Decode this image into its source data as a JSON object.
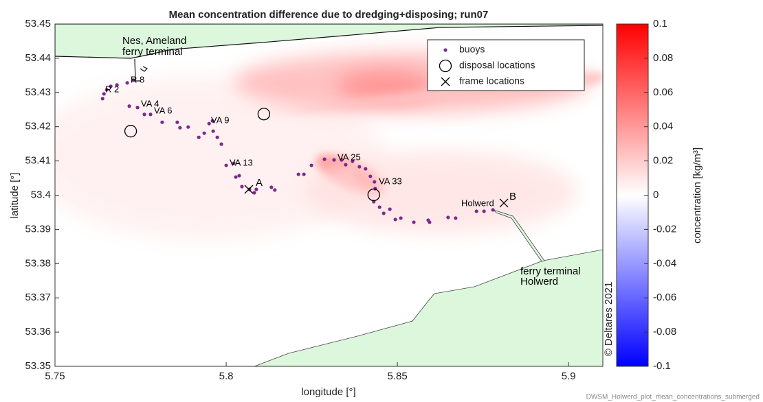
{
  "chart_data": {
    "type": "scatter",
    "title": "Mean concentration difference due to dredging+disposing; run07",
    "x_label": "longitude [°]",
    "y_label": "latitude [°]",
    "xlim": [
      5.75,
      5.91
    ],
    "ylim": [
      53.35,
      53.45
    ],
    "xticks": [
      5.75,
      5.8,
      5.85,
      5.9
    ],
    "yticks": [
      53.35,
      53.36,
      53.37,
      53.38,
      53.39,
      53.4,
      53.41,
      53.42,
      53.43,
      53.44,
      53.45
    ],
    "legend": "upper right",
    "series": [
      {
        "name": "buoys",
        "marker": "dot",
        "color": "#7b2a8c",
        "x": [
          5.7639,
          5.7643,
          5.7651,
          5.7663,
          5.7681,
          5.7711,
          5.7729,
          5.7717,
          5.7741,
          5.7761,
          5.7779,
          5.7813,
          5.7857,
          5.7865,
          5.7889,
          5.792,
          5.7936,
          5.795,
          5.796,
          5.7962,
          5.7974,
          5.7986,
          5.8,
          5.8022,
          5.8028,
          5.8038,
          5.8046,
          5.8068,
          5.8082,
          5.8088,
          5.8132,
          5.8142,
          5.8211,
          5.8227,
          5.8249,
          5.8287,
          5.8315,
          5.8337,
          5.8349,
          5.8369,
          5.8389,
          5.8407,
          5.8421,
          5.8433,
          5.8435,
          5.8431,
          5.8448,
          5.846,
          5.8478,
          5.8494,
          5.851,
          5.8548,
          5.859,
          5.8594,
          5.8648,
          5.867,
          5.8731,
          5.8753,
          5.8779
        ],
        "values": [
          53.4282,
          53.4296,
          53.4308,
          53.4318,
          53.4322,
          53.4328,
          53.4336,
          53.426,
          53.4256,
          53.4236,
          53.4236,
          53.4213,
          53.4213,
          53.4197,
          53.4199,
          53.4169,
          53.4181,
          53.4209,
          53.4217,
          53.4187,
          53.4169,
          53.4149,
          53.4087,
          53.4093,
          53.4053,
          53.4057,
          53.4025,
          53.4017,
          53.4007,
          53.4017,
          53.4023,
          53.4015,
          53.4061,
          53.4061,
          53.4087,
          53.4105,
          53.4103,
          53.4103,
          53.4089,
          53.4099,
          53.4083,
          53.4077,
          53.4055,
          53.4039,
          53.4019,
          53.3981,
          53.3965,
          53.3947,
          53.3959,
          53.3929,
          53.3933,
          53.3921,
          53.3927,
          53.3921,
          53.3935,
          53.3933,
          53.3953,
          53.3953,
          53.3957
        ]
      },
      {
        "name": "disposal locations",
        "marker": "circle",
        "color": "#000000",
        "x": [
          5.7721,
          5.811,
          5.8431
        ],
        "values": [
          53.4187,
          53.4237,
          53.4001
        ]
      },
      {
        "name": "frame locations",
        "marker": "x",
        "color": "#000000",
        "x": [
          5.8066,
          5.8811
        ],
        "values": [
          53.4017,
          53.3977
        ]
      }
    ],
    "annotations": [
      "R 2",
      "R 8",
      "VA 4",
      "VA 6",
      "VA 9",
      "VA 13",
      "VA 25",
      "VA 33",
      "A",
      "B",
      "Holwerd",
      "Nes, Ameland",
      "ferry terminal",
      "ferry terminal",
      "Holwerd",
      "© Deltares 2021"
    ],
    "colorbar": {
      "label": "concentration [kg/m³]",
      "lim": [
        -0.1,
        0.1
      ],
      "ticks": [
        -0.1,
        -0.08,
        -0.06,
        -0.04,
        -0.02,
        0,
        0.02,
        0.04,
        0.06,
        0.08,
        0.1
      ],
      "colors": [
        "#0000ff",
        "#ffffff",
        "#ff0000"
      ]
    },
    "footer": "DWSM_Holwerd_plot_mean_concentrations_submerged"
  }
}
